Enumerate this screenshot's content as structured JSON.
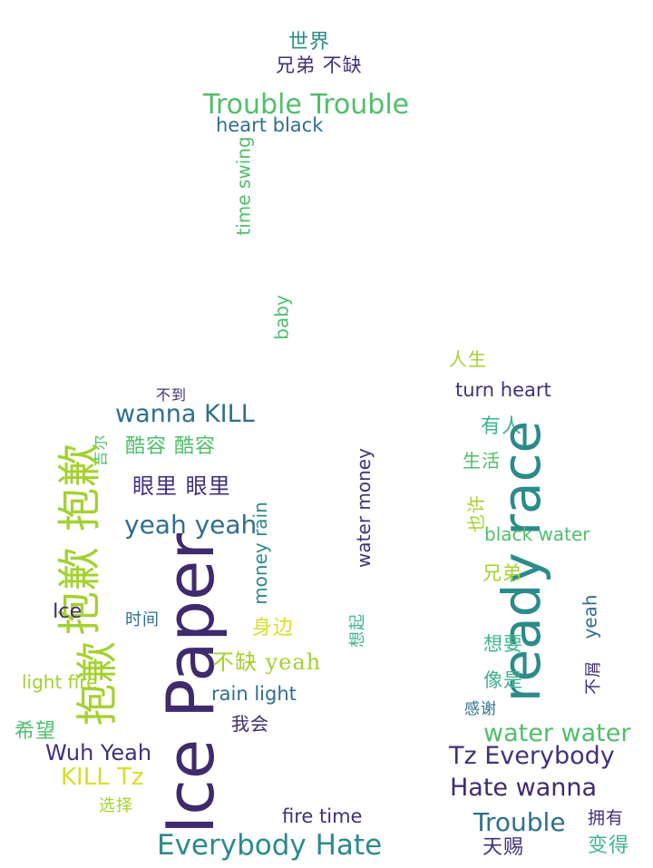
{
  "colors": {
    "purple": "#3f2a6e",
    "indigo": "#43307a",
    "teal": "#2a8b8a",
    "blue": "#2f6f8e",
    "green": "#4fbf6a",
    "lime": "#a4d12f",
    "yellow": "#d7df27",
    "mint": "#3fb48e"
  },
  "words": [
    {
      "id": "w01",
      "text": "世界"
    },
    {
      "id": "w02",
      "text": "兄弟 不缺"
    },
    {
      "id": "w03",
      "text": "Trouble Trouble"
    },
    {
      "id": "w04",
      "text": "heart black"
    },
    {
      "id": "w05",
      "text": "time swing"
    },
    {
      "id": "w06",
      "text": "baby"
    },
    {
      "id": "w07",
      "text": "不到"
    },
    {
      "id": "w08",
      "text": "wanna KILL"
    },
    {
      "id": "w09",
      "text": "吉尔"
    },
    {
      "id": "w10",
      "text": "酷容 酷容"
    },
    {
      "id": "w11",
      "text": "眼里 眼里"
    },
    {
      "id": "w12",
      "text": "抱歉 抱歉"
    },
    {
      "id": "w13",
      "text": "抱歉"
    },
    {
      "id": "w14",
      "text": "yeah yeah"
    },
    {
      "id": "w15",
      "text": "money rain"
    },
    {
      "id": "w16",
      "text": "water money"
    },
    {
      "id": "w17",
      "text": "Ice Paper"
    },
    {
      "id": "w18",
      "text": "Ice"
    },
    {
      "id": "w19",
      "text": "时间"
    },
    {
      "id": "w20",
      "text": "身边"
    },
    {
      "id": "w21",
      "text": "想起"
    },
    {
      "id": "w22",
      "text": "light fire"
    },
    {
      "id": "w23",
      "text": "不缺 yeah"
    },
    {
      "id": "w24",
      "text": "rain light"
    },
    {
      "id": "w25",
      "text": "我会"
    },
    {
      "id": "w26",
      "text": "希望"
    },
    {
      "id": "w27",
      "text": "Wuh Yeah"
    },
    {
      "id": "w28",
      "text": "KILL Tz"
    },
    {
      "id": "w29",
      "text": "选择"
    },
    {
      "id": "w30",
      "text": "fire time"
    },
    {
      "id": "w31",
      "text": "Everybody Hate"
    },
    {
      "id": "w32",
      "text": "人生"
    },
    {
      "id": "w33",
      "text": "turn heart"
    },
    {
      "id": "w34",
      "text": "有人"
    },
    {
      "id": "w35",
      "text": "ready race"
    },
    {
      "id": "w36",
      "text": "生活"
    },
    {
      "id": "w37",
      "text": "也许"
    },
    {
      "id": "w38",
      "text": "black water"
    },
    {
      "id": "w39",
      "text": "兄弟"
    },
    {
      "id": "w40",
      "text": "想要"
    },
    {
      "id": "w41",
      "text": "yeah"
    },
    {
      "id": "w42",
      "text": "不屑"
    },
    {
      "id": "w43",
      "text": "像是"
    },
    {
      "id": "w44",
      "text": "感谢"
    },
    {
      "id": "w45",
      "text": "water water"
    },
    {
      "id": "w46",
      "text": "Tz Everybody"
    },
    {
      "id": "w47",
      "text": "Hate wanna"
    },
    {
      "id": "w48",
      "text": "Trouble"
    },
    {
      "id": "w49",
      "text": "拥有"
    },
    {
      "id": "w50",
      "text": "天赐"
    },
    {
      "id": "w51",
      "text": "变得"
    }
  ]
}
